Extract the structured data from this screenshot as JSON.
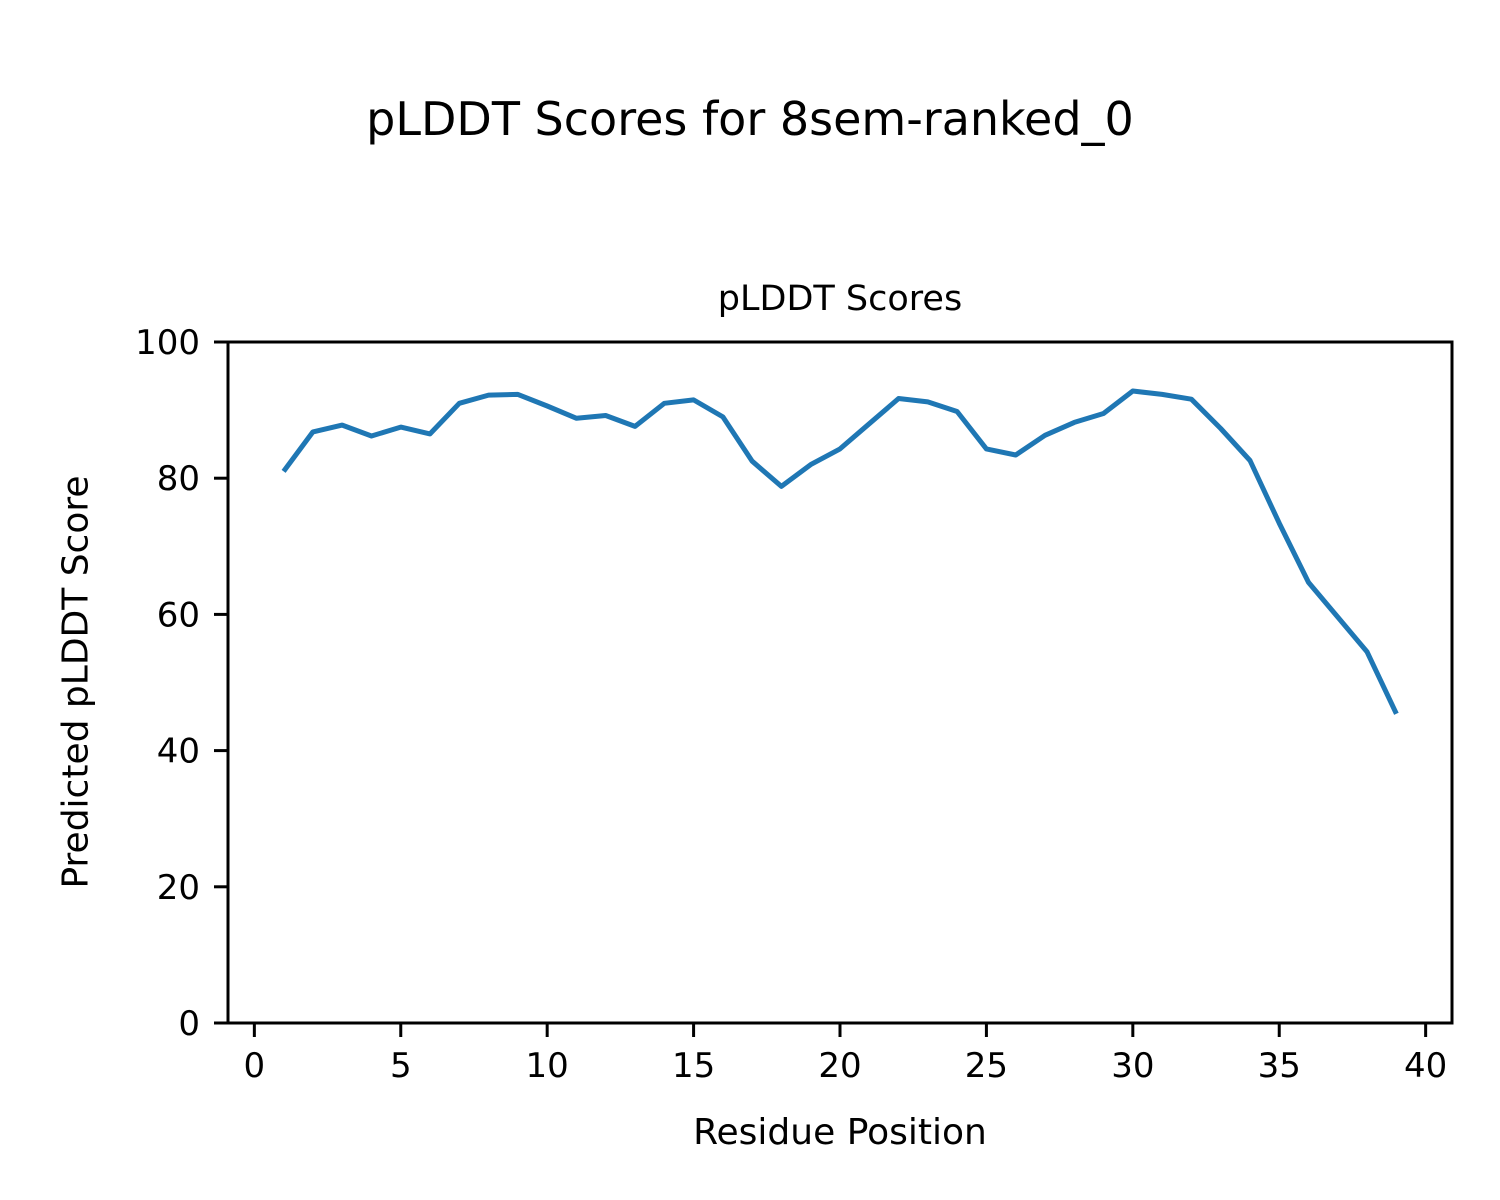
{
  "figure": {
    "suptitle": "pLDDT Scores for 8sem-ranked_0"
  },
  "chart_data": {
    "type": "line",
    "title": "pLDDT Scores",
    "xlabel": "Residue Position",
    "ylabel": "Predicted pLDDT Score",
    "x": [
      1,
      2,
      3,
      4,
      5,
      6,
      7,
      8,
      9,
      10,
      11,
      12,
      13,
      14,
      15,
      16,
      17,
      18,
      19,
      20,
      21,
      22,
      23,
      24,
      25,
      26,
      27,
      28,
      29,
      30,
      31,
      32,
      33,
      34,
      35,
      36,
      37,
      38,
      39
    ],
    "y": [
      81.0,
      86.8,
      87.8,
      86.2,
      87.5,
      86.5,
      91.0,
      92.2,
      92.3,
      90.6,
      88.8,
      89.2,
      87.6,
      91.0,
      91.5,
      89.0,
      82.5,
      78.8,
      82.0,
      84.3,
      88.0,
      91.7,
      91.2,
      89.8,
      84.3,
      83.4,
      86.3,
      88.2,
      89.5,
      92.8,
      92.3,
      91.6,
      87.3,
      82.6,
      73.4,
      64.7,
      59.6,
      54.5,
      45.4
    ],
    "xlim": [
      -0.9,
      40.9
    ],
    "ylim": [
      0,
      100
    ],
    "xticks": [
      0,
      5,
      10,
      15,
      20,
      25,
      30,
      35,
      40
    ],
    "yticks": [
      0,
      20,
      40,
      60,
      80,
      100
    ],
    "grid": false,
    "legend": "none",
    "line_color": "#1f77b4",
    "line_width": 5,
    "axis_color": "#000000"
  }
}
